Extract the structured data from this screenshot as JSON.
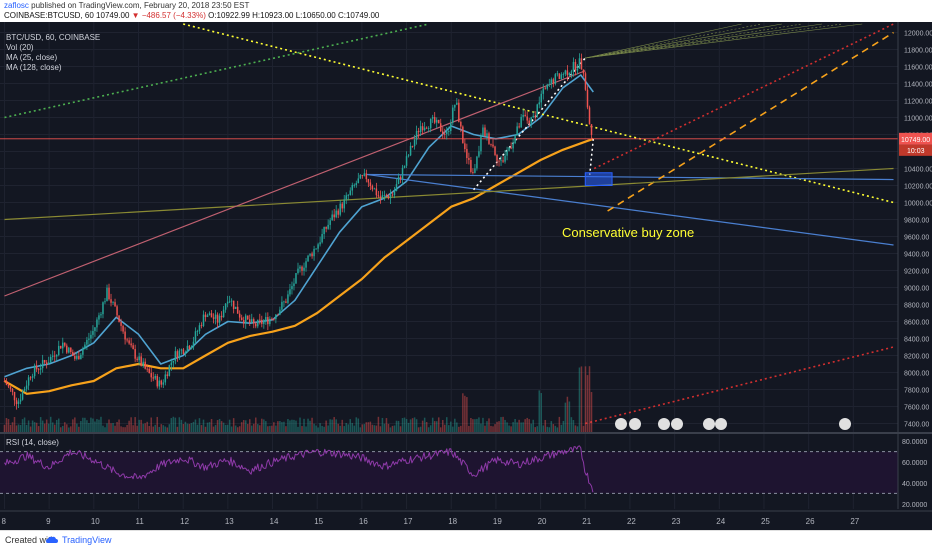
{
  "header": {
    "author": "zaflosc",
    "published": "published on TradingView.com, February 20, 2018 23:50 EST",
    "symbol": "COINBASE:BTCUSD, 60",
    "last_value": "10749.00",
    "change": "−486.57 (−4.33%)",
    "ohlc": "O:10922.99 H:10923.00 L:10650.00 C:10749.00"
  },
  "legend": {
    "title": "BTC/USD, 60, COINBASE",
    "vol": "Vol (20)",
    "ma1": "MA (25, close)",
    "ma2": "MA (128, close)"
  },
  "rsi_label": "RSI (14, close)",
  "annotation": "Conservative buy zone",
  "footer": {
    "created": "Created with",
    "brand": "TradingView"
  },
  "colors": {
    "background": "#131722",
    "grid": "#1f2330",
    "up": "#26a69a",
    "down": "#ef5350",
    "ma25": "#4fa3d1",
    "ma128": "#f7a21b",
    "rsi": "#8e3aa8",
    "annotation": "#ffff33",
    "price_badge": "#ef5350"
  },
  "chart_data": {
    "type": "candlestick",
    "x_ticks": [
      "8",
      "9",
      "10",
      "11",
      "12",
      "13",
      "14",
      "15",
      "16",
      "17",
      "18",
      "19",
      "20",
      "21",
      "22",
      "23",
      "24",
      "25",
      "26",
      "27"
    ],
    "price_ticks": [
      7400,
      7600,
      7800,
      8000,
      8200,
      8400,
      8600,
      8800,
      9000,
      9200,
      9400,
      9600,
      9800,
      10000,
      10200,
      10400,
      10600,
      10800,
      11000,
      11200,
      11400,
      11600,
      11800,
      12000
    ],
    "price_range": [
      7300,
      12100
    ],
    "rsi_ticks": [
      "80.0000",
      "60.0000",
      "40.0000",
      "20.0000"
    ],
    "rsi_range": [
      15,
      85
    ],
    "last_price_label": "10749.00",
    "countdown_label": "10:03",
    "price_path": [
      [
        8.0,
        7900
      ],
      [
        8.3,
        7650
      ],
      [
        8.6,
        8000
      ],
      [
        9.0,
        8150
      ],
      [
        9.3,
        8350
      ],
      [
        9.6,
        8150
      ],
      [
        10.0,
        8500
      ],
      [
        10.3,
        8950
      ],
      [
        10.5,
        8700
      ],
      [
        10.8,
        8300
      ],
      [
        11.2,
        8000
      ],
      [
        11.5,
        7850
      ],
      [
        11.8,
        8200
      ],
      [
        12.2,
        8350
      ],
      [
        12.5,
        8700
      ],
      [
        12.8,
        8600
      ],
      [
        13.0,
        8900
      ],
      [
        13.3,
        8650
      ],
      [
        13.6,
        8550
      ],
      [
        14.0,
        8650
      ],
      [
        14.3,
        8850
      ],
      [
        14.6,
        9200
      ],
      [
        15.0,
        9500
      ],
      [
        15.3,
        9800
      ],
      [
        15.6,
        10000
      ],
      [
        15.9,
        10250
      ],
      [
        16.1,
        10300
      ],
      [
        16.4,
        10050
      ],
      [
        16.7,
        10100
      ],
      [
        17.0,
        10500
      ],
      [
        17.3,
        10900
      ],
      [
        17.6,
        10950
      ],
      [
        17.9,
        10800
      ],
      [
        18.1,
        11200
      ],
      [
        18.3,
        10600
      ],
      [
        18.5,
        10300
      ],
      [
        18.7,
        10850
      ],
      [
        18.9,
        10700
      ],
      [
        19.1,
        10450
      ],
      [
        19.4,
        10750
      ],
      [
        19.6,
        11000
      ],
      [
        19.8,
        10950
      ],
      [
        20.0,
        11250
      ],
      [
        20.3,
        11450
      ],
      [
        20.6,
        11550
      ],
      [
        20.9,
        11650
      ],
      [
        21.0,
        11350
      ],
      [
        21.1,
        10900
      ],
      [
        21.18,
        10749
      ]
    ],
    "ma25": [
      [
        8.0,
        7950
      ],
      [
        8.5,
        8050
      ],
      [
        9.0,
        8100
      ],
      [
        9.5,
        8200
      ],
      [
        10.0,
        8350
      ],
      [
        10.5,
        8650
      ],
      [
        11.0,
        8450
      ],
      [
        11.5,
        8100
      ],
      [
        12.0,
        8200
      ],
      [
        12.5,
        8450
      ],
      [
        13.0,
        8600
      ],
      [
        13.5,
        8580
      ],
      [
        14.0,
        8620
      ],
      [
        14.5,
        8850
      ],
      [
        15.0,
        9250
      ],
      [
        15.5,
        9650
      ],
      [
        16.0,
        9950
      ],
      [
        16.5,
        10050
      ],
      [
        17.0,
        10250
      ],
      [
        17.5,
        10650
      ],
      [
        18.0,
        10900
      ],
      [
        18.5,
        10800
      ],
      [
        19.0,
        10750
      ],
      [
        19.5,
        10800
      ],
      [
        20.0,
        11000
      ],
      [
        20.5,
        11350
      ],
      [
        20.9,
        11500
      ],
      [
        21.18,
        11300
      ]
    ],
    "ma128": [
      [
        8.0,
        7900
      ],
      [
        8.5,
        7750
      ],
      [
        9.0,
        7780
      ],
      [
        9.5,
        7850
      ],
      [
        10.0,
        7900
      ],
      [
        10.5,
        8050
      ],
      [
        11.0,
        8100
      ],
      [
        11.5,
        8050
      ],
      [
        12.0,
        8050
      ],
      [
        12.5,
        8200
      ],
      [
        13.0,
        8350
      ],
      [
        13.5,
        8430
      ],
      [
        14.0,
        8480
      ],
      [
        14.5,
        8550
      ],
      [
        15.0,
        8700
      ],
      [
        15.5,
        8900
      ],
      [
        16.0,
        9100
      ],
      [
        16.5,
        9350
      ],
      [
        17.0,
        9550
      ],
      [
        17.5,
        9750
      ],
      [
        18.0,
        9950
      ],
      [
        18.5,
        10050
      ],
      [
        19.0,
        10200
      ],
      [
        19.5,
        10350
      ],
      [
        20.0,
        10500
      ],
      [
        20.5,
        10620
      ],
      [
        21.18,
        10749
      ]
    ],
    "rsi": [
      [
        8.0,
        58
      ],
      [
        8.5,
        66
      ],
      [
        9.0,
        55
      ],
      [
        9.5,
        70
      ],
      [
        10.0,
        62
      ],
      [
        10.5,
        50
      ],
      [
        11.0,
        44
      ],
      [
        11.5,
        57
      ],
      [
        12.0,
        64
      ],
      [
        12.5,
        55
      ],
      [
        13.0,
        62
      ],
      [
        13.5,
        52
      ],
      [
        14.0,
        60
      ],
      [
        14.5,
        66
      ],
      [
        15.0,
        70
      ],
      [
        15.5,
        68
      ],
      [
        16.0,
        64
      ],
      [
        16.5,
        56
      ],
      [
        17.0,
        62
      ],
      [
        17.5,
        66
      ],
      [
        18.0,
        70
      ],
      [
        18.5,
        48
      ],
      [
        19.0,
        62
      ],
      [
        19.5,
        58
      ],
      [
        20.0,
        64
      ],
      [
        20.5,
        70
      ],
      [
        20.9,
        72
      ],
      [
        21.0,
        52
      ],
      [
        21.18,
        33
      ]
    ],
    "volume_spikes": [
      [
        18.3,
        0.55
      ],
      [
        20.0,
        0.5
      ],
      [
        20.6,
        0.45
      ],
      [
        20.9,
        0.95
      ],
      [
        21.05,
        0.8
      ],
      [
        21.15,
        0.5
      ]
    ],
    "lines": [
      {
        "name": "downtrend",
        "style": "dotted",
        "color": "#ffff33",
        "from": [
          12.0,
          12100
        ],
        "to": [
          27.9,
          10000
        ]
      },
      {
        "name": "support-1",
        "style": "solid",
        "color": "#4a7fd0",
        "from": [
          16.1,
          10330
        ],
        "to": [
          27.9,
          10270
        ]
      },
      {
        "name": "support-2",
        "style": "solid",
        "color": "#4a7fd0",
        "from": [
          16.1,
          10330
        ],
        "to": [
          27.9,
          9500
        ]
      },
      {
        "name": "pitch-median",
        "style": "dotted",
        "color": "#ffffff",
        "from": [
          18.5,
          10150
        ],
        "to": [
          21.0,
          11700
        ]
      },
      {
        "name": "pitch-upper",
        "style": "dashed",
        "color": "#f7a21b",
        "from": [
          21.5,
          9900
        ],
        "to": [
          27.9,
          12000
        ]
      },
      {
        "name": "pitch-lower",
        "style": "dotted",
        "color": "#d32f2f",
        "from": [
          21.0,
          7400
        ],
        "to": [
          27.9,
          8300
        ]
      },
      {
        "name": "pitch-red-upper",
        "style": "dotted",
        "color": "#d32f2f",
        "from": [
          21.2,
          10400
        ],
        "to": [
          27.9,
          12100
        ]
      },
      {
        "name": "green-channel-top",
        "style": "dotted",
        "color": "#4caf50",
        "from": [
          8.0,
          11000
        ],
        "to": [
          17.5,
          12100
        ]
      },
      {
        "name": "olive-channel",
        "style": "solid",
        "color": "#8a8a33",
        "from": [
          8.0,
          9800
        ],
        "to": [
          27.9,
          10400
        ]
      },
      {
        "name": "pink-ray",
        "style": "solid",
        "color": "#c06070",
        "from": [
          8.0,
          8900
        ],
        "to": [
          21.0,
          11550
        ]
      }
    ],
    "buy_zone": {
      "x": [
        21.0,
        21.6
      ],
      "y": [
        10200,
        10350
      ]
    }
  }
}
